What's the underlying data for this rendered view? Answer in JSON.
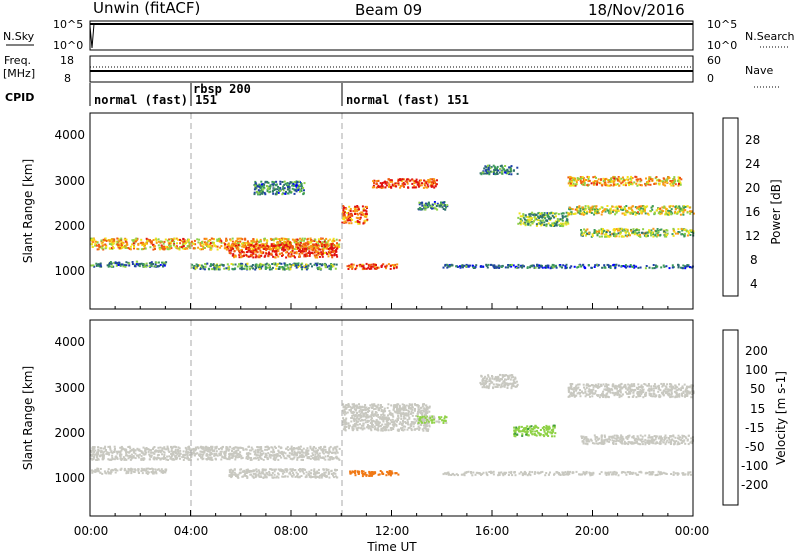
{
  "header": {
    "station": "Unwin (fitACF)",
    "beam": "Beam 09",
    "date": "18/Nov/2016"
  },
  "top_panels": {
    "nsky_label": "N.Sky",
    "nsky_ticks": [
      "10^5",
      "10^0"
    ],
    "nsearch_label": "N.Search",
    "nsearch_ticks": [
      "10^5",
      "10^0"
    ],
    "freq_label": "Freq.",
    "freq_unit": "[MHz]",
    "freq_ticks": [
      "18",
      "8"
    ],
    "nave_label": "Nave",
    "nave_ticks": [
      "60",
      "0"
    ],
    "cpid_label": "CPID",
    "cpid_segments": [
      {
        "label": "normal (fast) 151",
        "start_hour": 0,
        "end_hour": 3.95
      },
      {
        "label": "rbsp 200",
        "start_hour": 3.95,
        "end_hour": 9.95
      },
      {
        "label": "normal (fast) 151",
        "start_hour": 9.95,
        "end_hour": 24
      }
    ]
  },
  "power_panel": {
    "ylabel": "Slant Range [km]",
    "yticks": [
      "4000",
      "3000",
      "2000",
      "1000"
    ],
    "colorbar_label": "Power [dB]",
    "colorbar_ticks": [
      "28",
      "24",
      "20",
      "16",
      "12",
      "8",
      "4"
    ],
    "colors": [
      "#0000ff",
      "#1e3fa8",
      "#2e6e6e",
      "#3c9a5a",
      "#8fd146",
      "#f2e21b",
      "#fa9a14",
      "#f05a10",
      "#e01010"
    ]
  },
  "velocity_panel": {
    "ylabel": "Slant Range [km]",
    "yticks": [
      "4000",
      "3000",
      "2000",
      "1000"
    ],
    "colorbar_label": "Velocity [m s-1]",
    "colorbar_ticks": [
      "200",
      "100",
      "50",
      "15",
      "-15",
      "-50",
      "-100",
      "-200"
    ],
    "colors": [
      "#2a3caa",
      "#2a7a6a",
      "#3c9a40",
      "#8fd146",
      "#c8c8c0",
      "#f5b414",
      "#f07814",
      "#f04010",
      "#e01010"
    ]
  },
  "xaxis": {
    "label": "Time UT",
    "ticks": [
      "00:00",
      "04:00",
      "08:00",
      "12:00",
      "16:00",
      "20:00",
      "00:00"
    ]
  },
  "chart_data": {
    "type": "heatmap",
    "x_range_hours": [
      0,
      24
    ],
    "y_range_km": [
      180,
      4550
    ],
    "power_bands_db": [
      {
        "t0": 0.0,
        "t1": 9.9,
        "r_center": 1650,
        "r_width": 250,
        "value": 22
      },
      {
        "t0": 0.0,
        "t1": 3.0,
        "r_center": 1200,
        "r_width": 120,
        "value": 10
      },
      {
        "t0": 4.0,
        "t1": 9.8,
        "r_center": 1150,
        "r_width": 140,
        "value": 12
      },
      {
        "t0": 5.5,
        "t1": 9.8,
        "r_center": 1500,
        "r_width": 300,
        "value": 28
      },
      {
        "t0": 6.5,
        "t1": 8.5,
        "r_center": 2900,
        "r_width": 300,
        "value": 10
      },
      {
        "t0": 10.0,
        "t1": 11.0,
        "r_center": 2300,
        "r_width": 400,
        "value": 26
      },
      {
        "t0": 10.2,
        "t1": 12.2,
        "r_center": 1150,
        "r_width": 120,
        "value": 28
      },
      {
        "t0": 11.2,
        "t1": 13.8,
        "r_center": 3000,
        "r_width": 200,
        "value": 28
      },
      {
        "t0": 13.0,
        "t1": 14.2,
        "r_center": 2500,
        "r_width": 180,
        "value": 10
      },
      {
        "t0": 14.0,
        "t1": 24.0,
        "r_center": 1150,
        "r_width": 80,
        "value": 8
      },
      {
        "t0": 15.5,
        "t1": 17.0,
        "r_center": 3300,
        "r_width": 200,
        "value": 10
      },
      {
        "t0": 17.0,
        "t1": 19.0,
        "r_center": 2200,
        "r_width": 300,
        "value": 14
      },
      {
        "t0": 19.0,
        "t1": 23.5,
        "r_center": 3050,
        "r_width": 200,
        "value": 22
      },
      {
        "t0": 19.0,
        "t1": 24.0,
        "r_center": 2400,
        "r_width": 200,
        "value": 18
      },
      {
        "t0": 19.5,
        "t1": 24.0,
        "r_center": 1900,
        "r_width": 180,
        "value": 16
      }
    ],
    "velocity_bands_ms": [
      {
        "t0": 0.0,
        "t1": 9.9,
        "r_center": 1600,
        "r_width": 300,
        "value": 0
      },
      {
        "t0": 0.0,
        "t1": 3.0,
        "r_center": 1200,
        "r_width": 120,
        "value": 0
      },
      {
        "t0": 5.5,
        "t1": 9.8,
        "r_center": 1150,
        "r_width": 200,
        "value": 0
      },
      {
        "t0": 10.2,
        "t1": 12.3,
        "r_center": 1150,
        "r_width": 120,
        "value": -80
      },
      {
        "t0": 10.0,
        "t1": 13.5,
        "r_center": 2400,
        "r_width": 600,
        "value": 0
      },
      {
        "t0": 13.0,
        "t1": 14.2,
        "r_center": 2350,
        "r_width": 150,
        "value": 20
      },
      {
        "t0": 15.5,
        "t1": 17.0,
        "r_center": 3200,
        "r_width": 300,
        "value": 0
      },
      {
        "t0": 16.8,
        "t1": 18.5,
        "r_center": 2100,
        "r_width": 250,
        "value": 40
      },
      {
        "t0": 19.0,
        "t1": 24.0,
        "r_center": 3000,
        "r_width": 300,
        "value": 0
      },
      {
        "t0": 19.5,
        "t1": 24.0,
        "r_center": 1900,
        "r_width": 200,
        "value": 0
      },
      {
        "t0": 14.0,
        "t1": 24.0,
        "r_center": 1150,
        "r_width": 80,
        "value": 0
      }
    ]
  }
}
